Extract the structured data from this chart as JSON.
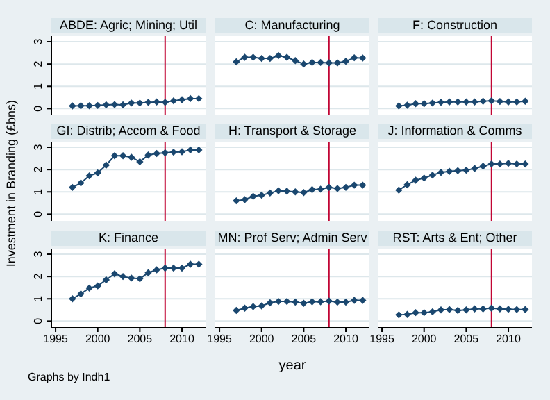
{
  "chart_data": [
    {
      "type": "line",
      "title": "ABDE: Agric; Mining; Util",
      "x": [
        1997,
        1998,
        1999,
        2000,
        2001,
        2002,
        2003,
        2004,
        2005,
        2006,
        2007,
        2008,
        2009,
        2010,
        2011,
        2012
      ],
      "series": [
        {
          "color": "#1a476f",
          "values": [
            0.12,
            0.13,
            0.13,
            0.14,
            0.17,
            0.18,
            0.17,
            0.25,
            0.25,
            0.28,
            0.3,
            0.28,
            0.35,
            0.4,
            0.45,
            0.45
          ]
        }
      ],
      "xlim": [
        1994.5,
        2012.8
      ],
      "xticks": [
        1995,
        2000,
        2005,
        2010
      ],
      "ylim": [
        -0.3,
        3.25
      ],
      "yticks": [
        0,
        1,
        2,
        3
      ],
      "grid": "y",
      "marker": "diamond",
      "ref_lines": [
        {
          "axis": "x",
          "value": 2008,
          "color": "#c10534"
        }
      ],
      "tick_labels": "y"
    },
    {
      "type": "line",
      "title": "C: Manufacturing",
      "x": [
        1997,
        1998,
        1999,
        2000,
        2001,
        2002,
        2003,
        2004,
        2005,
        2006,
        2007,
        2008,
        2009,
        2010,
        2011,
        2012
      ],
      "series": [
        {
          "color": "#1a476f",
          "values": [
            2.1,
            2.3,
            2.3,
            2.25,
            2.25,
            2.38,
            2.3,
            2.15,
            2.0,
            2.07,
            2.07,
            2.05,
            2.05,
            2.12,
            2.28,
            2.27
          ]
        }
      ],
      "xlim": [
        1994.5,
        2012.8
      ],
      "xticks": [
        1995,
        2000,
        2005,
        2010
      ],
      "ylim": [
        -0.3,
        3.25
      ],
      "yticks": [
        0,
        1,
        2,
        3
      ],
      "grid": "y",
      "marker": "diamond",
      "ref_lines": [
        {
          "axis": "x",
          "value": 2008,
          "color": "#c10534"
        }
      ],
      "tick_labels": false
    },
    {
      "type": "line",
      "title": "F: Construction",
      "x": [
        1997,
        1998,
        1999,
        2000,
        2001,
        2002,
        2003,
        2004,
        2005,
        2006,
        2007,
        2008,
        2009,
        2010,
        2011,
        2012
      ],
      "series": [
        {
          "color": "#1a476f",
          "values": [
            0.12,
            0.15,
            0.22,
            0.22,
            0.25,
            0.28,
            0.3,
            0.3,
            0.3,
            0.3,
            0.33,
            0.35,
            0.32,
            0.3,
            0.3,
            0.33
          ]
        }
      ],
      "xlim": [
        1994.5,
        2012.8
      ],
      "xticks": [
        1995,
        2000,
        2005,
        2010
      ],
      "ylim": [
        -0.3,
        3.25
      ],
      "yticks": [
        0,
        1,
        2,
        3
      ],
      "grid": "y",
      "marker": "diamond",
      "ref_lines": [
        {
          "axis": "x",
          "value": 2008,
          "color": "#c10534"
        }
      ],
      "tick_labels": false
    },
    {
      "type": "line",
      "title": "GI: Distrib; Accom & Food",
      "ylabel": "Investment in Branding (£bns)",
      "x": [
        1997,
        1998,
        1999,
        2000,
        2001,
        2002,
        2003,
        2004,
        2005,
        2006,
        2007,
        2008,
        2009,
        2010,
        2011,
        2012
      ],
      "series": [
        {
          "color": "#1a476f",
          "values": [
            1.2,
            1.4,
            1.72,
            1.85,
            2.2,
            2.62,
            2.62,
            2.55,
            2.35,
            2.65,
            2.72,
            2.75,
            2.78,
            2.8,
            2.88,
            2.88
          ]
        }
      ],
      "xlim": [
        1994.5,
        2012.8
      ],
      "xticks": [
        1995,
        2000,
        2005,
        2010
      ],
      "ylim": [
        -0.3,
        3.25
      ],
      "yticks": [
        0,
        1,
        2,
        3
      ],
      "grid": "y",
      "marker": "diamond",
      "ref_lines": [
        {
          "axis": "x",
          "value": 2008,
          "color": "#c10534"
        }
      ],
      "tick_labels": "y"
    },
    {
      "type": "line",
      "title": "H: Transport & Storage",
      "x": [
        1997,
        1998,
        1999,
        2000,
        2001,
        2002,
        2003,
        2004,
        2005,
        2006,
        2007,
        2008,
        2009,
        2010,
        2011,
        2012
      ],
      "series": [
        {
          "color": "#1a476f",
          "values": [
            0.6,
            0.65,
            0.8,
            0.85,
            0.95,
            1.05,
            1.03,
            1.0,
            0.97,
            1.1,
            1.12,
            1.2,
            1.15,
            1.2,
            1.3,
            1.3
          ]
        }
      ],
      "xlim": [
        1994.5,
        2012.8
      ],
      "xticks": [
        1995,
        2000,
        2005,
        2010
      ],
      "ylim": [
        -0.3,
        3.25
      ],
      "yticks": [
        0,
        1,
        2,
        3
      ],
      "grid": "y",
      "marker": "diamond",
      "ref_lines": [
        {
          "axis": "x",
          "value": 2008,
          "color": "#c10534"
        }
      ],
      "tick_labels": false
    },
    {
      "type": "line",
      "title": "J: Information & Comms",
      "x": [
        1997,
        1998,
        1999,
        2000,
        2001,
        2002,
        2003,
        2004,
        2005,
        2006,
        2007,
        2008,
        2009,
        2010,
        2011,
        2012
      ],
      "series": [
        {
          "color": "#1a476f",
          "values": [
            1.08,
            1.32,
            1.52,
            1.62,
            1.75,
            1.87,
            1.92,
            1.95,
            1.97,
            2.05,
            2.15,
            2.25,
            2.25,
            2.28,
            2.25,
            2.25
          ]
        }
      ],
      "xlim": [
        1994.5,
        2012.8
      ],
      "xticks": [
        1995,
        2000,
        2005,
        2010
      ],
      "ylim": [
        -0.3,
        3.25
      ],
      "yticks": [
        0,
        1,
        2,
        3
      ],
      "grid": "y",
      "marker": "diamond",
      "ref_lines": [
        {
          "axis": "x",
          "value": 2008,
          "color": "#c10534"
        }
      ],
      "tick_labels": false
    },
    {
      "type": "line",
      "title": "K: Finance",
      "annotations": [
        "Graphs by Indh1"
      ],
      "x": [
        1997,
        1998,
        1999,
        2000,
        2001,
        2002,
        2003,
        2004,
        2005,
        2006,
        2007,
        2008,
        2009,
        2010,
        2011,
        2012
      ],
      "series": [
        {
          "color": "#1a476f",
          "values": [
            1.0,
            1.22,
            1.48,
            1.58,
            1.85,
            2.12,
            2.0,
            1.93,
            1.9,
            2.17,
            2.3,
            2.38,
            2.38,
            2.38,
            2.55,
            2.55
          ]
        }
      ],
      "xlim": [
        1994.5,
        2012.8
      ],
      "xticks": [
        1995,
        2000,
        2005,
        2010
      ],
      "ylim": [
        -0.3,
        3.25
      ],
      "yticks": [
        0,
        1,
        2,
        3
      ],
      "grid": "y",
      "marker": "diamond",
      "ref_lines": [
        {
          "axis": "x",
          "value": 2008,
          "color": "#c10534"
        }
      ]
    },
    {
      "type": "line",
      "title": "MN: Prof Serv; Admin Serv",
      "xlabel": "year",
      "x": [
        1997,
        1998,
        1999,
        2000,
        2001,
        2002,
        2003,
        2004,
        2005,
        2006,
        2007,
        2008,
        2009,
        2010,
        2011,
        2012
      ],
      "series": [
        {
          "color": "#1a476f",
          "values": [
            0.48,
            0.58,
            0.65,
            0.68,
            0.82,
            0.88,
            0.88,
            0.85,
            0.8,
            0.87,
            0.87,
            0.9,
            0.85,
            0.85,
            0.93,
            0.93
          ]
        }
      ],
      "xlim": [
        1994.5,
        2012.8
      ],
      "xticks": [
        1995,
        2000,
        2005,
        2010
      ],
      "ylim": [
        -0.3,
        3.25
      ],
      "yticks": [
        0,
        1,
        2,
        3
      ],
      "grid": "y",
      "marker": "diamond",
      "ref_lines": [
        {
          "axis": "x",
          "value": 2008,
          "color": "#c10534"
        }
      ],
      "tick_labels": "x"
    },
    {
      "type": "line",
      "title": "RST: Arts & Ent; Other",
      "x": [
        1997,
        1998,
        1999,
        2000,
        2001,
        2002,
        2003,
        2004,
        2005,
        2006,
        2007,
        2008,
        2009,
        2010,
        2011,
        2012
      ],
      "series": [
        {
          "color": "#1a476f",
          "values": [
            0.28,
            0.3,
            0.38,
            0.38,
            0.42,
            0.5,
            0.52,
            0.48,
            0.5,
            0.55,
            0.55,
            0.58,
            0.55,
            0.53,
            0.52,
            0.52
          ]
        }
      ],
      "xlim": [
        1994.5,
        2012.8
      ],
      "xticks": [
        1995,
        2000,
        2005,
        2010
      ],
      "ylim": [
        -0.3,
        3.25
      ],
      "yticks": [
        0,
        1,
        2,
        3
      ],
      "grid": "y",
      "marker": "diamond",
      "ref_lines": [
        {
          "axis": "x",
          "value": 2008,
          "color": "#c10534"
        }
      ],
      "tick_labels": "x"
    }
  ]
}
